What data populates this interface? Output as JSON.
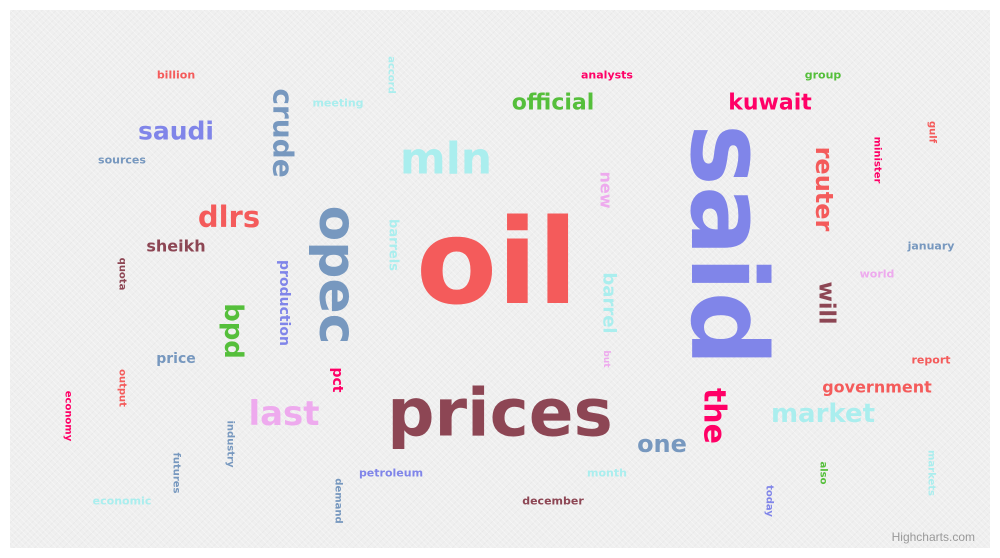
{
  "chart_data": {
    "type": "wordcloud",
    "title": "",
    "words": [
      {
        "text": "oil",
        "color": "#f45b5b"
      },
      {
        "text": "said",
        "color": "#8085e9"
      },
      {
        "text": "prices",
        "color": "#8d4654"
      },
      {
        "text": "opec",
        "color": "#7798bf"
      },
      {
        "text": "mln",
        "color": "#aaeeee"
      },
      {
        "text": "the",
        "color": "#ff0066"
      },
      {
        "text": "crude",
        "color": "#7798bf"
      },
      {
        "text": "last",
        "color": "#eeaaee"
      },
      {
        "text": "saudi",
        "color": "#8085e9"
      },
      {
        "text": "dlrs",
        "color": "#f45b5b"
      },
      {
        "text": "market",
        "color": "#aaeeee"
      },
      {
        "text": "reuter",
        "color": "#f45b5b"
      },
      {
        "text": "bpd",
        "color": "#55bf3b"
      },
      {
        "text": "one",
        "color": "#7798bf"
      },
      {
        "text": "official",
        "color": "#55bf3b"
      },
      {
        "text": "kuwait",
        "color": "#ff0066"
      },
      {
        "text": "will",
        "color": "#8d4654"
      },
      {
        "text": "new",
        "color": "#eeaaee"
      },
      {
        "text": "barrel",
        "color": "#aaeeee"
      },
      {
        "text": "government",
        "color": "#f45b5b"
      },
      {
        "text": "sheikh",
        "color": "#8d4654"
      },
      {
        "text": "production",
        "color": "#8085e9"
      },
      {
        "text": "barrels",
        "color": "#aaeeee"
      },
      {
        "text": "price",
        "color": "#7798bf"
      },
      {
        "text": "pct",
        "color": "#ff0066"
      },
      {
        "text": "january",
        "color": "#7798bf"
      },
      {
        "text": "report",
        "color": "#f45b5b"
      },
      {
        "text": "world",
        "color": "#eeaaee"
      },
      {
        "text": "minister",
        "color": "#ff0066"
      },
      {
        "text": "gulf",
        "color": "#f45b5b"
      },
      {
        "text": "group",
        "color": "#55bf3b"
      },
      {
        "text": "analysts",
        "color": "#ff0066"
      },
      {
        "text": "billion",
        "color": "#f45b5b"
      },
      {
        "text": "meeting",
        "color": "#aaeeee"
      },
      {
        "text": "accord",
        "color": "#aaeeee"
      },
      {
        "text": "sources",
        "color": "#7798bf"
      },
      {
        "text": "quota",
        "color": "#8d4654"
      },
      {
        "text": "output",
        "color": "#f45b5b"
      },
      {
        "text": "economy",
        "color": "#ff0066"
      },
      {
        "text": "industry",
        "color": "#7798bf"
      },
      {
        "text": "futures",
        "color": "#7798bf"
      },
      {
        "text": "economic",
        "color": "#aaeeee"
      },
      {
        "text": "demand",
        "color": "#7798bf"
      },
      {
        "text": "petroleum",
        "color": "#8085e9"
      },
      {
        "text": "december",
        "color": "#8d4654"
      },
      {
        "text": "month",
        "color": "#aaeeee"
      },
      {
        "text": "today",
        "color": "#8085e9"
      },
      {
        "text": "also",
        "color": "#55bf3b"
      },
      {
        "text": "markets",
        "color": "#aaeeee"
      },
      {
        "text": "but",
        "color": "#eeaaee"
      }
    ]
  },
  "credit": "Highcharts.com"
}
